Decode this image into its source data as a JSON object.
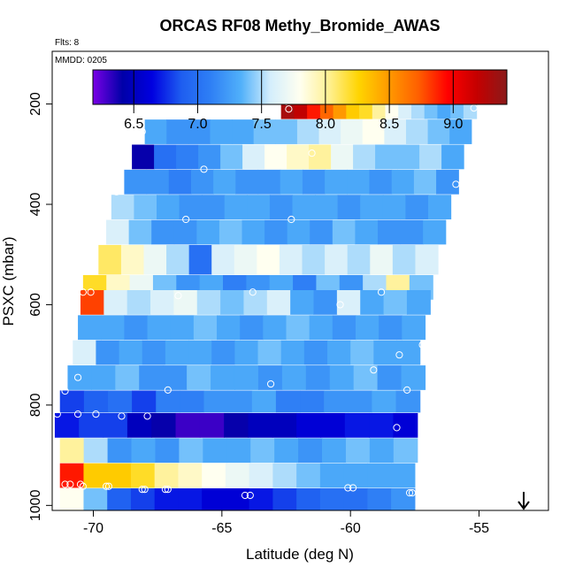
{
  "chart_data": {
    "type": "heatmap",
    "title": "ORCAS RF08 Methy_Bromide_AWAS",
    "note_flts": "Flts: 8",
    "note_date": "MMDD: 0205",
    "xlabel": "Latitude (deg N)",
    "ylabel": "PSXC (mbar)",
    "xlim": [
      -71.6,
      -52.3
    ],
    "ylim": [
      1010,
      95
    ],
    "y_inverted": true,
    "x_ticks": [
      {
        "v": -70,
        "label": "-70"
      },
      {
        "v": -65,
        "label": "-65"
      },
      {
        "v": -60,
        "label": "-60"
      },
      {
        "v": -55,
        "label": "-55"
      }
    ],
    "y_ticks": [
      {
        "v": 200,
        "label": "200"
      },
      {
        "v": 400,
        "label": "400"
      },
      {
        "v": 600,
        "label": "600"
      },
      {
        "v": 800,
        "label": "800"
      },
      {
        "v": 1000,
        "label": "1000"
      }
    ],
    "colorbar": {
      "range": [
        6.18,
        9.42
      ],
      "colors": [
        "#7a00e6",
        "#0000a8",
        "#0000e0",
        "#1e5ef0",
        "#2f80f5",
        "#50b0fa",
        "#d4eefc",
        "#fffff0",
        "#fff090",
        "#ffd400",
        "#ff9a00",
        "#ff6000",
        "#ff0000",
        "#c40000",
        "#8a1a1a"
      ],
      "ticks": [
        {
          "v": 6.5,
          "label": "6.5"
        },
        {
          "v": 7.0,
          "label": "7.0"
        },
        {
          "v": 7.5,
          "label": "7.5"
        },
        {
          "v": 8.0,
          "label": "8.0"
        },
        {
          "v": 8.5,
          "label": "8.5"
        },
        {
          "v": 9.0,
          "label": "9.0"
        }
      ]
    },
    "bands": [
      {
        "p_top": 180,
        "p_bot": 230,
        "x_start": -62.7,
        "x_end": -55.1,
        "values": [
          9.3,
          9.2,
          8.9,
          8.7,
          8.5,
          8.3,
          8.2,
          8.0,
          7.8,
          7.6,
          7.5,
          7.4,
          7.3,
          7.4,
          7.5
        ]
      },
      {
        "p_top": 231,
        "p_bot": 280,
        "x_start": -68.0,
        "x_end": -55.3,
        "values": [
          7.3,
          7.2,
          7.2,
          7.3,
          7.3,
          7.4,
          7.4,
          7.5,
          7.6,
          7.7,
          7.8,
          7.6,
          7.5,
          7.4,
          7.3
        ]
      },
      {
        "p_top": 281,
        "p_bot": 330,
        "x_start": -68.5,
        "x_end": -55.6,
        "values": [
          6.4,
          7.0,
          7.1,
          7.2,
          7.4,
          7.6,
          7.8,
          7.9,
          8.0,
          7.7,
          7.5,
          7.4,
          7.4,
          7.5,
          7.3
        ]
      },
      {
        "p_top": 331,
        "p_bot": 380,
        "x_start": -68.8,
        "x_end": -55.8,
        "values": [
          7.2,
          7.2,
          7.1,
          7.2,
          7.3,
          7.2,
          7.2,
          7.3,
          7.2,
          7.3,
          7.3,
          7.2,
          7.3,
          7.4,
          7.2
        ]
      },
      {
        "p_top": 381,
        "p_bot": 430,
        "x_start": -69.3,
        "x_end": -56.1,
        "values": [
          7.5,
          7.4,
          7.3,
          7.2,
          7.2,
          7.3,
          7.3,
          7.2,
          7.3,
          7.3,
          7.2,
          7.3,
          7.3,
          7.2,
          7.3
        ]
      },
      {
        "p_top": 431,
        "p_bot": 480,
        "x_start": -69.5,
        "x_end": -56.3,
        "values": [
          7.6,
          7.4,
          7.2,
          7.2,
          7.3,
          7.4,
          7.3,
          7.2,
          7.3,
          7.2,
          7.4,
          7.3,
          7.2,
          7.2,
          7.3
        ]
      },
      {
        "p_top": 481,
        "p_bot": 540,
        "x_start": -69.8,
        "x_end": -56.6,
        "values": [
          8.1,
          7.9,
          7.7,
          7.5,
          7.0,
          7.6,
          7.7,
          7.8,
          7.6,
          7.5,
          7.6,
          7.5,
          7.7,
          7.5,
          7.6
        ]
      },
      {
        "p_top": 541,
        "p_bot": 590,
        "x_start": -70.4,
        "x_end": -56.8,
        "values": [
          8.2,
          7.9,
          7.7,
          7.4,
          7.2,
          7.3,
          7.1,
          7.2,
          7.3,
          7.1,
          7.4,
          7.2,
          7.5,
          8.0,
          7.4
        ]
      },
      {
        "p_top": 571,
        "p_bot": 620,
        "x_start": -70.5,
        "x_end": -56.9,
        "values": [
          8.8,
          7.6,
          7.5,
          7.6,
          7.7,
          7.5,
          7.4,
          7.5,
          7.6,
          7.3,
          7.2,
          7.6,
          7.3,
          7.4,
          7.3
        ]
      },
      {
        "p_top": 621,
        "p_bot": 670,
        "x_start": -70.6,
        "x_end": -57.1,
        "values": [
          7.3,
          7.3,
          7.2,
          7.3,
          7.3,
          7.4,
          7.3,
          7.2,
          7.3,
          7.4,
          7.3,
          7.2,
          7.3,
          7.2,
          7.3
        ]
      },
      {
        "p_top": 671,
        "p_bot": 720,
        "x_start": -70.8,
        "x_end": -57.3,
        "values": [
          7.6,
          7.2,
          7.3,
          7.2,
          7.3,
          7.3,
          7.2,
          7.3,
          7.4,
          7.3,
          7.2,
          7.3,
          7.4,
          7.3,
          7.3
        ]
      },
      {
        "p_top": 721,
        "p_bot": 770,
        "x_start": -71.0,
        "x_end": -57.1,
        "values": [
          7.3,
          7.3,
          7.4,
          7.2,
          7.2,
          7.4,
          7.3,
          7.3,
          7.2,
          7.3,
          7.2,
          7.3,
          7.4,
          7.2,
          7.3
        ]
      },
      {
        "p_top": 771,
        "p_bot": 815,
        "x_start": -71.3,
        "x_end": -57.3,
        "values": [
          6.8,
          6.9,
          7.0,
          6.8,
          7.1,
          7.1,
          7.2,
          7.2,
          7.3,
          7.1,
          7.1,
          7.2,
          7.2,
          7.3,
          7.2
        ]
      },
      {
        "p_top": 816,
        "p_bot": 865,
        "x_start": -71.5,
        "x_end": -57.4,
        "values": [
          6.7,
          6.8,
          6.8,
          6.5,
          6.4,
          6.3,
          6.3,
          6.4,
          6.5,
          6.5,
          6.6,
          6.6,
          6.7,
          6.7,
          6.6
        ]
      },
      {
        "p_top": 866,
        "p_bot": 915,
        "x_start": -71.3,
        "x_end": -57.4,
        "values": [
          8.0,
          7.5,
          7.2,
          7.3,
          7.2,
          7.4,
          7.3,
          7.3,
          7.4,
          7.3,
          7.2,
          7.3,
          7.4,
          7.3,
          7.4
        ]
      },
      {
        "p_top": 916,
        "p_bot": 965,
        "x_start": -71.3,
        "x_end": -57.5,
        "values": [
          8.9,
          8.3,
          8.3,
          8.2,
          8.0,
          7.9,
          7.8,
          7.7,
          7.6,
          7.5,
          7.4,
          7.3,
          7.3,
          7.3,
          7.3
        ]
      },
      {
        "p_top": 966,
        "p_bot": 1010,
        "x_start": -71.3,
        "x_end": -57.5,
        "values": [
          7.8,
          7.4,
          6.9,
          6.8,
          6.7,
          6.7,
          6.6,
          6.6,
          6.7,
          6.8,
          6.9,
          7.0,
          7.0,
          7.1,
          7.2
        ]
      }
    ],
    "samples": [
      {
        "x": -62.5,
        "y": 195
      },
      {
        "x": -62.4,
        "y": 210
      },
      {
        "x": -58.5,
        "y": 188
      },
      {
        "x": -55.2,
        "y": 208
      },
      {
        "x": -67.9,
        "y": 215
      },
      {
        "x": -68.1,
        "y": 255
      },
      {
        "x": -68.7,
        "y": 300
      },
      {
        "x": -65.7,
        "y": 330
      },
      {
        "x": -61.5,
        "y": 298
      },
      {
        "x": -55.9,
        "y": 360
      },
      {
        "x": -69.1,
        "y": 375
      },
      {
        "x": -66.4,
        "y": 430
      },
      {
        "x": -62.3,
        "y": 430
      },
      {
        "x": -56.6,
        "y": 550
      },
      {
        "x": -70.4,
        "y": 575
      },
      {
        "x": -70.1,
        "y": 575
      },
      {
        "x": -66.7,
        "y": 582
      },
      {
        "x": -63.8,
        "y": 575
      },
      {
        "x": -60.4,
        "y": 600
      },
      {
        "x": -58.8,
        "y": 575
      },
      {
        "x": -57.2,
        "y": 680
      },
      {
        "x": -58.1,
        "y": 700
      },
      {
        "x": -59.1,
        "y": 730
      },
      {
        "x": -70.6,
        "y": 745
      },
      {
        "x": -71.1,
        "y": 772
      },
      {
        "x": -67.1,
        "y": 770
      },
      {
        "x": -63.1,
        "y": 758
      },
      {
        "x": -57.8,
        "y": 770
      },
      {
        "x": -71.4,
        "y": 818
      },
      {
        "x": -70.6,
        "y": 818
      },
      {
        "x": -69.9,
        "y": 818
      },
      {
        "x": -68.9,
        "y": 822
      },
      {
        "x": -67.9,
        "y": 822
      },
      {
        "x": -58.2,
        "y": 845
      },
      {
        "x": -71.1,
        "y": 958
      },
      {
        "x": -70.9,
        "y": 958
      },
      {
        "x": -70.5,
        "y": 958
      },
      {
        "x": -70.4,
        "y": 962
      },
      {
        "x": -69.5,
        "y": 962
      },
      {
        "x": -69.4,
        "y": 962
      },
      {
        "x": -68.1,
        "y": 968
      },
      {
        "x": -68.0,
        "y": 968
      },
      {
        "x": -67.2,
        "y": 968
      },
      {
        "x": -67.1,
        "y": 968
      },
      {
        "x": -64.1,
        "y": 980
      },
      {
        "x": -63.9,
        "y": 980
      },
      {
        "x": -60.1,
        "y": 965
      },
      {
        "x": -59.9,
        "y": 965
      },
      {
        "x": -57.7,
        "y": 975
      },
      {
        "x": -57.6,
        "y": 975
      }
    ]
  }
}
